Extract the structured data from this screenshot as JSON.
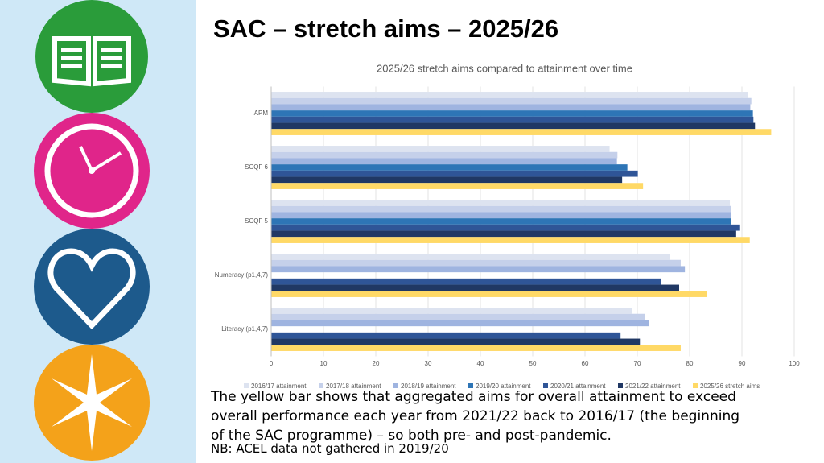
{
  "slide": {
    "title": "SAC – stretch aims – 2025/26",
    "body": "The yellow bar shows that aggregated aims for overall attainment to exceed overall performance each year from 2021/22 back to 2016/17 (the beginning of the SAC programme) – so both pre- and post-pandemic.",
    "note": "NB: ACEL data not gathered in 2019/20"
  },
  "chart_data": {
    "type": "hbar",
    "title": "2025/26 stretch aims compared to attainment over time",
    "categories": [
      "APM",
      "SCQF 6",
      "SCQF 5",
      "Numeracy (p1,4,7)",
      "Literacy (p1,4,7)"
    ],
    "series": [
      {
        "name": "2016/17 attainment",
        "color": "#dde3f0",
        "values": [
          91.1,
          64.7,
          87.7,
          76.3,
          69
        ]
      },
      {
        "name": "2017/18 attainment",
        "color": "#c5d0ea",
        "values": [
          91.8,
          66.2,
          88,
          78.3,
          71.5
        ]
      },
      {
        "name": "2018/19 attainment",
        "color": "#9fb4e0",
        "values": [
          91.6,
          66.1,
          87.9,
          79.1,
          72.3
        ]
      },
      {
        "name": "2019/20 attainment",
        "color": "#2e75b6",
        "values": [
          92.1,
          68.1,
          88,
          null,
          null
        ]
      },
      {
        "name": "2020/21 attainment",
        "color": "#2f5597",
        "values": [
          92.2,
          70.1,
          89.5,
          74.6,
          66.8
        ]
      },
      {
        "name": "2021/22 attainment",
        "color": "#203864",
        "values": [
          92.5,
          67.1,
          88.9,
          78,
          70.5
        ]
      },
      {
        "name": "2025/26 stretch aims",
        "color": "#ffd966",
        "values": [
          95.6,
          71.1,
          91.5,
          83.3,
          78.3
        ]
      }
    ],
    "xlim": [
      0,
      100
    ],
    "xticks": [
      0,
      10,
      20,
      30,
      40,
      50,
      60,
      70,
      80,
      90,
      100
    ],
    "grid": true
  }
}
